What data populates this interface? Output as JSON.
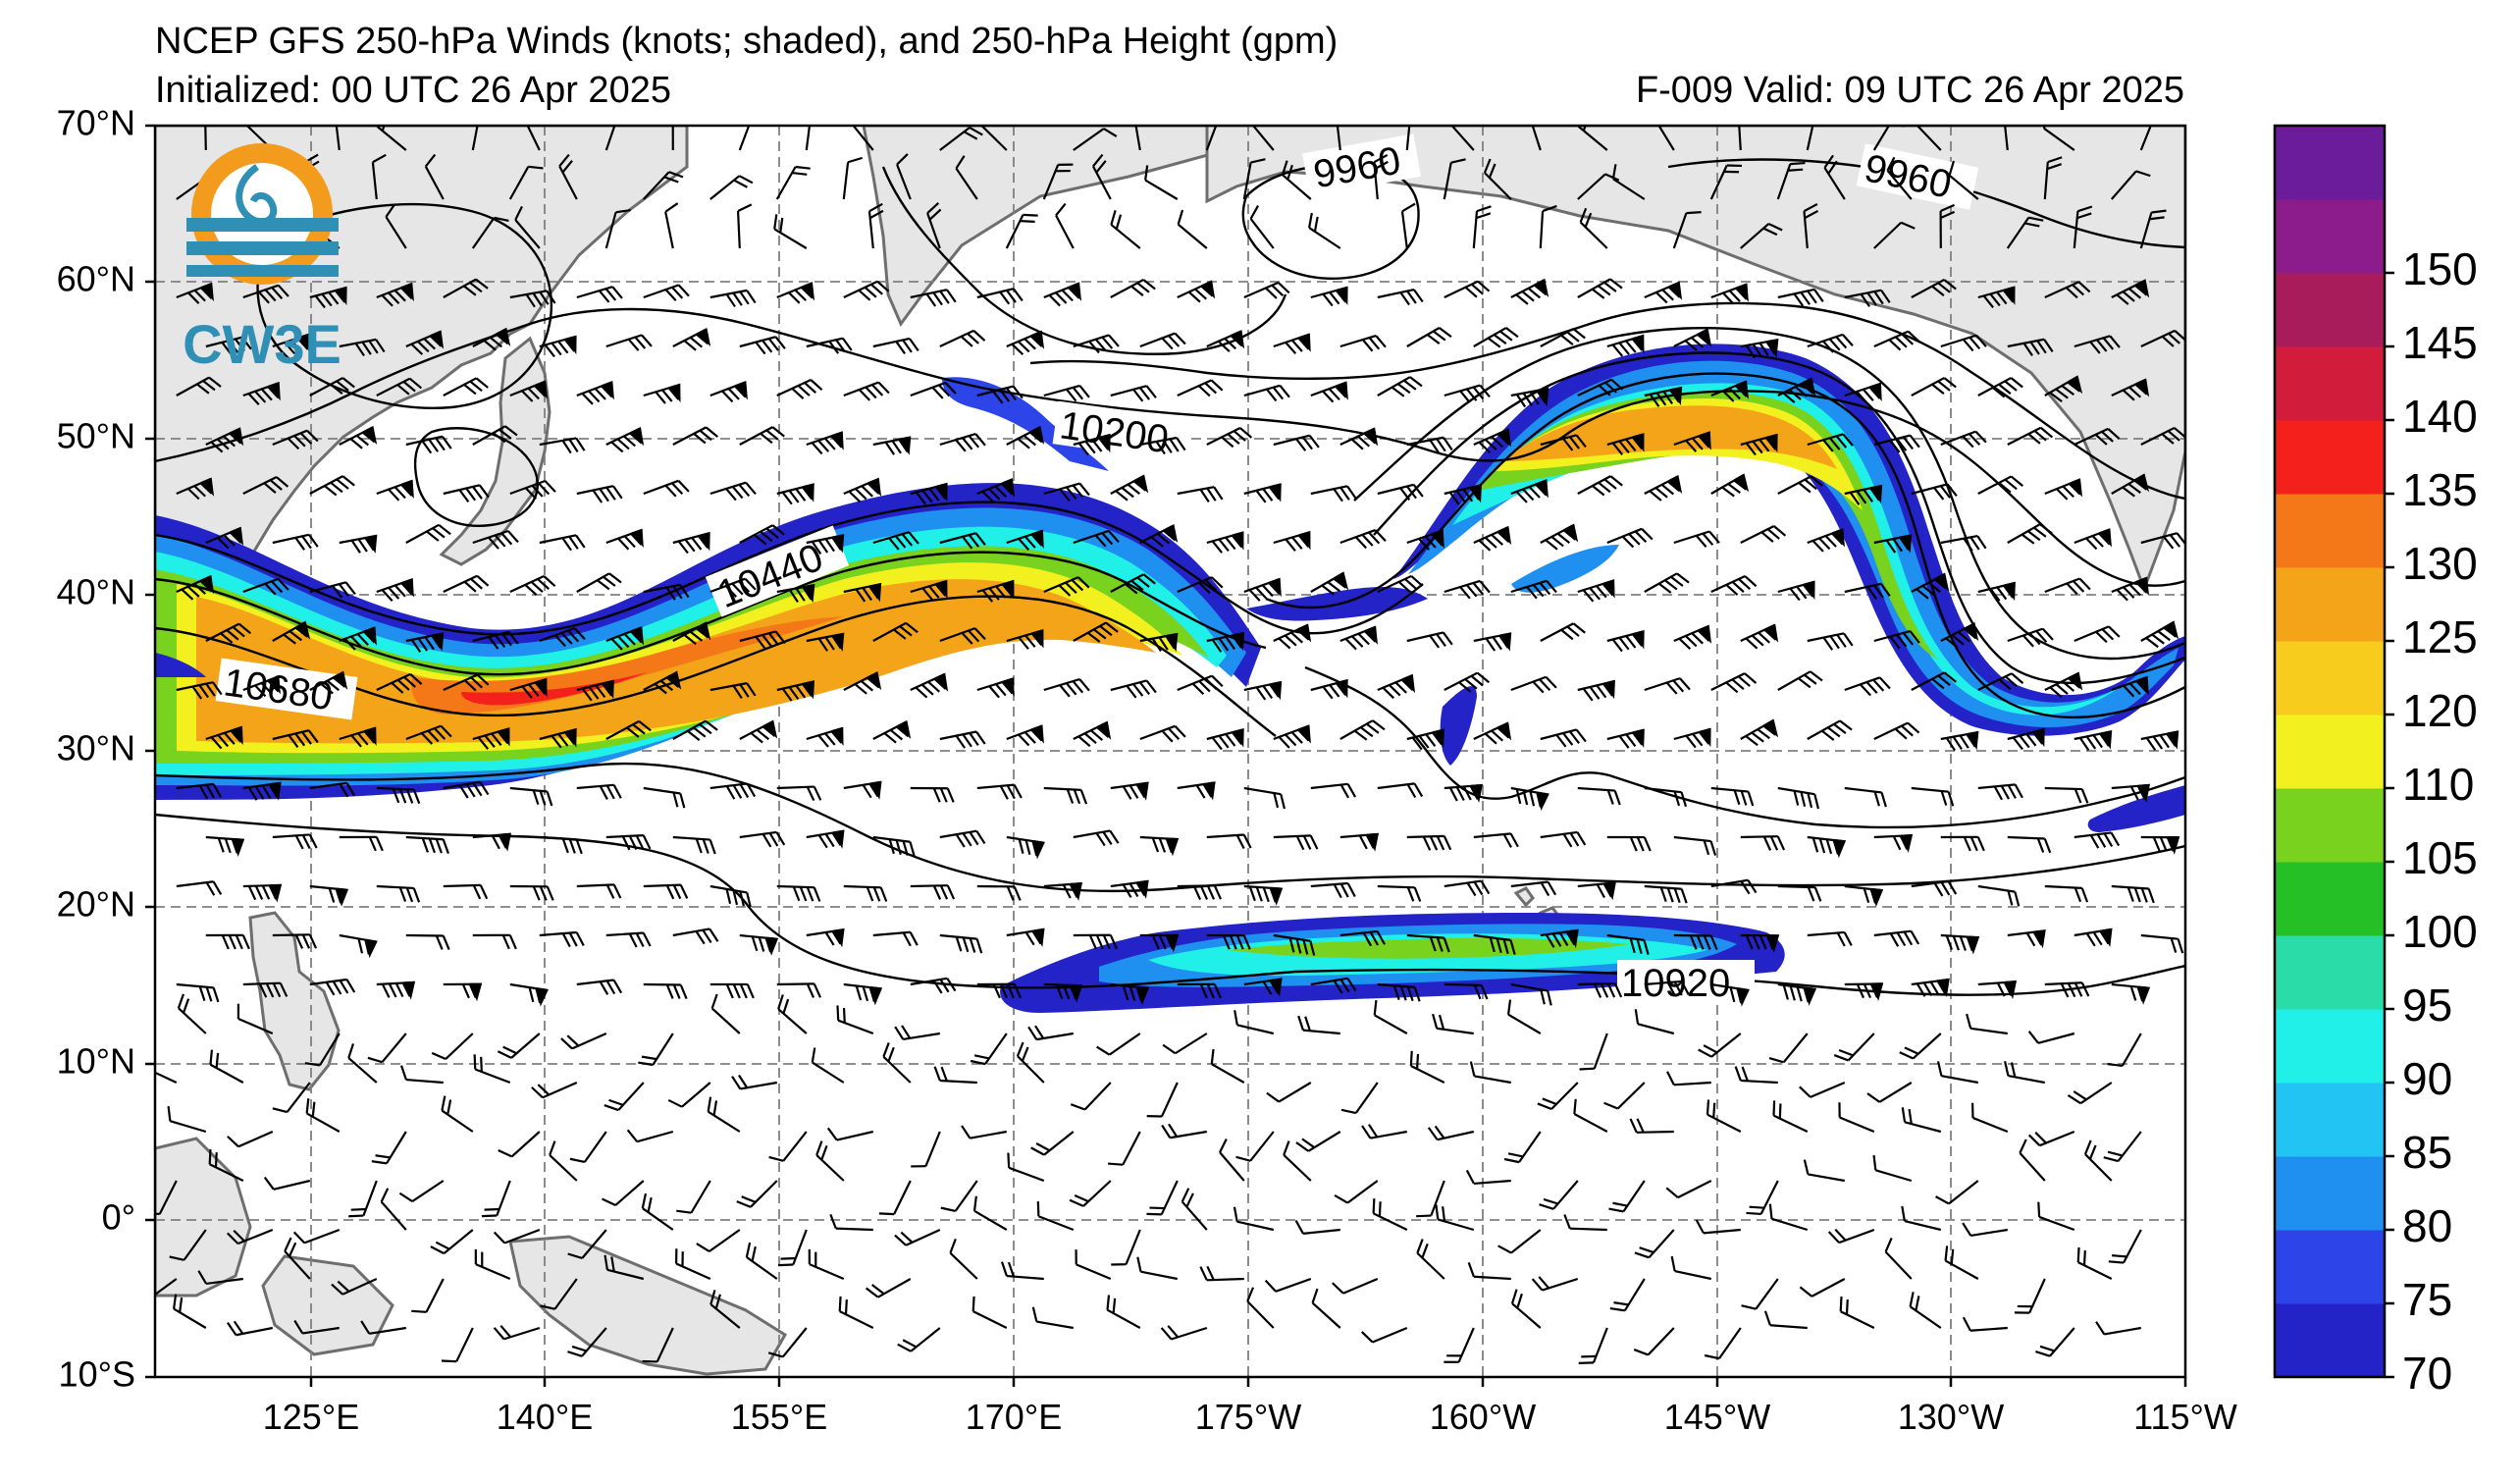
{
  "header": {
    "title": "NCEP GFS 250-hPa Winds (knots; shaded), and 250-hPa Height (gpm)",
    "initialized": "Initialized: 00 UTC 26 Apr 2025",
    "valid": "F-009  Valid: 09 UTC 26 Apr 2025"
  },
  "logo": {
    "text": "CW3E"
  },
  "map": {
    "lat_labels": [
      "70°N",
      "60°N",
      "50°N",
      "40°N",
      "30°N",
      "20°N",
      "10°N",
      "0°",
      "10°S"
    ],
    "lon_labels": [
      "125°E",
      "140°E",
      "155°E",
      "170°E",
      "175°W",
      "160°W",
      "145°W",
      "130°W",
      "115°W"
    ],
    "height_contour_labels": [
      "9960",
      "9960",
      "10200",
      "10440",
      "10680",
      "10920"
    ],
    "land_color": "#e6e6e6",
    "coast_color": "#6e6e6e"
  },
  "colorbar": {
    "labels": [
      "70",
      "75",
      "80",
      "85",
      "90",
      "95",
      "100",
      "105",
      "110",
      "120",
      "125",
      "130",
      "135",
      "140",
      "145",
      "150"
    ],
    "colors": [
      "#2323c8",
      "#2c44e8",
      "#1f8ff0",
      "#22c4f4",
      "#20f0e8",
      "#2adca8",
      "#24c026",
      "#78d21e",
      "#f2f01e",
      "#f8cc1c",
      "#f4a418",
      "#f47818",
      "#f4201c",
      "#d21c3c",
      "#a81c5c",
      "#8c1c8c",
      "#6a1c9a"
    ]
  }
}
